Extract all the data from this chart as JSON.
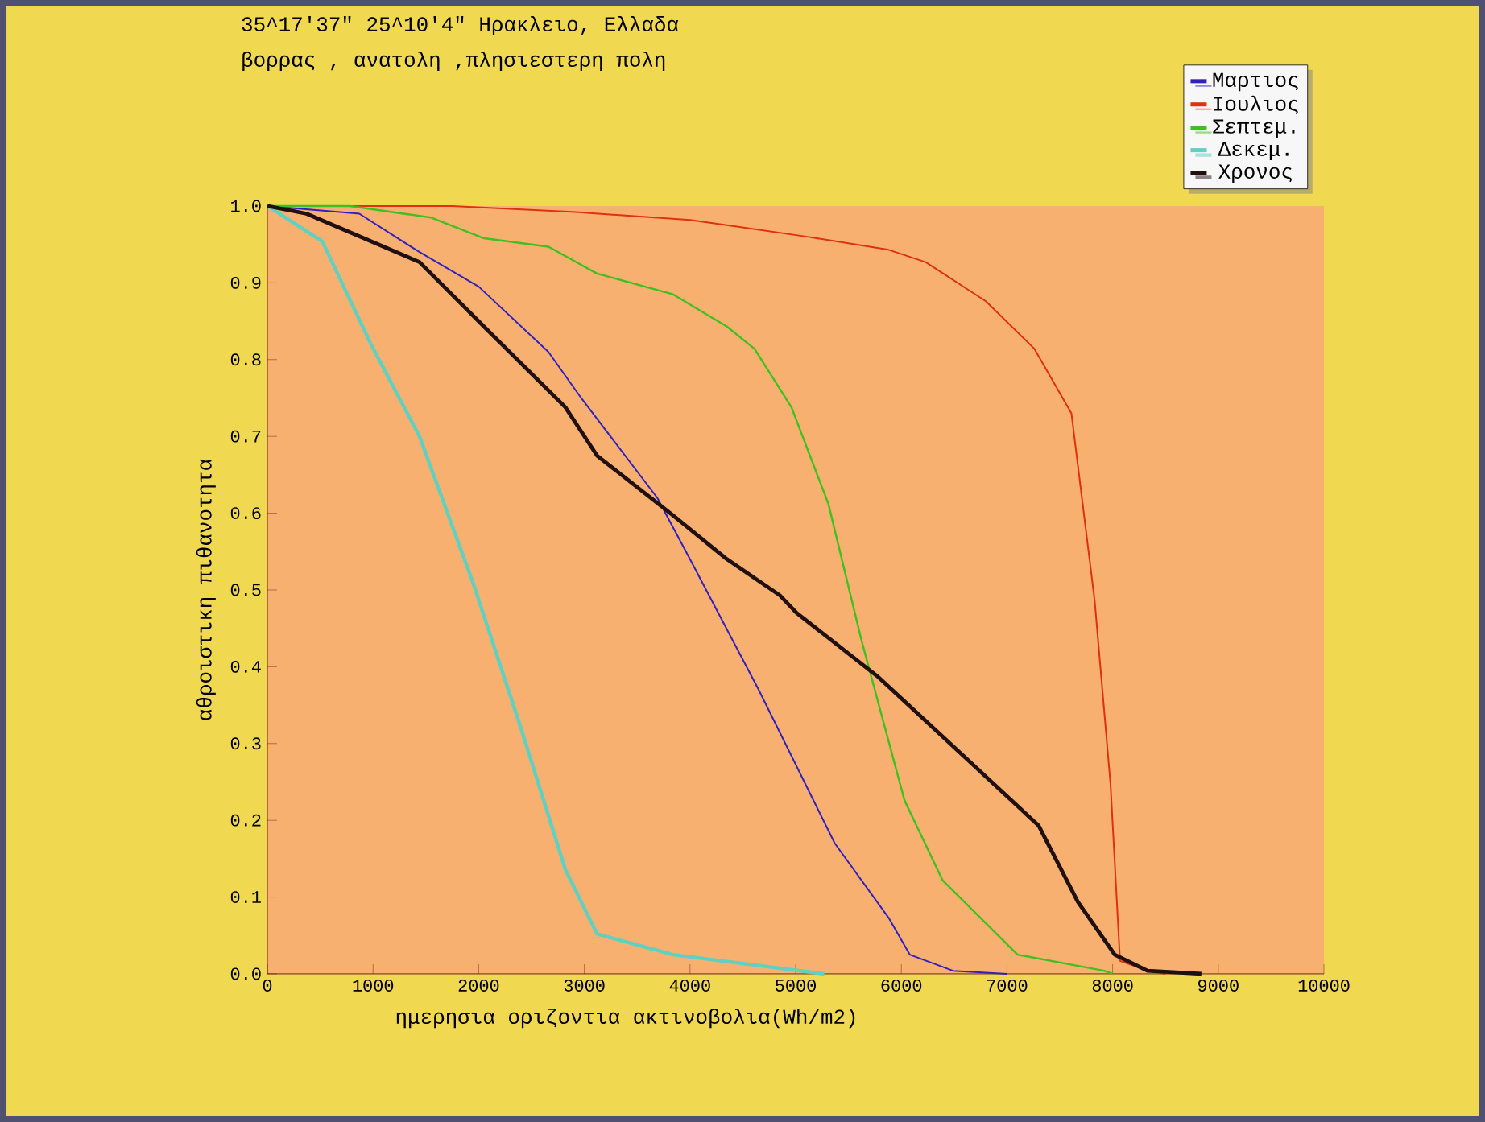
{
  "chart_data": {
    "type": "line",
    "title": "35^17'37\"      25^10'4\"  Ηρακλειο, Ελλαδα",
    "subtitle": "βορρας ,  ανατολη ,πλησιεστερη πολη",
    "xlabel": "ημερησια οριζοντια ακτινοβολια(Wh/m2)",
    "ylabel": "αθροιστικη πιθανοτητα",
    "xlim": [
      0,
      10000
    ],
    "ylim": [
      0,
      1
    ],
    "xticks": [
      0,
      1000,
      2000,
      3000,
      4000,
      5000,
      6000,
      7000,
      8000,
      9000,
      10000
    ],
    "yticks": [
      {
        "value": 0,
        "label": "0.0"
      },
      {
        "value": 0.1,
        "label": "0.1"
      },
      {
        "value": 0.2,
        "label": "0.2"
      },
      {
        "value": 0.3,
        "label": "0.3"
      },
      {
        "value": 0.4,
        "label": "0.4"
      },
      {
        "value": 0.5,
        "label": "0.5"
      },
      {
        "value": 0.6,
        "label": "0.6"
      },
      {
        "value": 0.7,
        "label": "0.7"
      },
      {
        "value": 0.8,
        "label": "0.8"
      },
      {
        "value": 0.9,
        "label": "0.9"
      },
      {
        "value": 1,
        "label": "1.0"
      }
    ],
    "legend": "top right",
    "series": [
      {
        "name": "Μαρτιος",
        "color": "#3020c0",
        "x": [
          0,
          870,
          1440,
          2000,
          2660,
          2970,
          3690,
          4000,
          4650,
          5370,
          5880,
          6080,
          6490,
          7000
        ],
        "values": [
          1.0,
          0.99,
          0.94,
          0.895,
          0.81,
          0.75,
          0.62,
          0.54,
          0.37,
          0.17,
          0.073,
          0.025,
          0.004,
          0.0
        ]
      },
      {
        "name": "Ιουλιος",
        "color": "#e03010",
        "x": [
          0,
          1750,
          2920,
          4000,
          4350,
          5110,
          5880,
          6230,
          6800,
          7260,
          7610,
          7830,
          7980,
          8070,
          8330,
          8500
        ],
        "values": [
          1.0,
          1.0,
          0.992,
          0.982,
          0.975,
          0.96,
          0.943,
          0.927,
          0.876,
          0.814,
          0.73,
          0.486,
          0.247,
          0.017,
          0.004,
          0.0
        ]
      },
      {
        "name": "Σεπτεμ.",
        "color": "#40c020",
        "x": [
          0,
          780,
          1550,
          2050,
          2660,
          3120,
          3840,
          4350,
          4610,
          4960,
          5310,
          5620,
          6030,
          6390,
          7100,
          7920,
          8000
        ],
        "values": [
          1.0,
          1.0,
          0.985,
          0.958,
          0.947,
          0.912,
          0.885,
          0.843,
          0.814,
          0.738,
          0.612,
          0.436,
          0.226,
          0.122,
          0.025,
          0.004,
          0.0
        ]
      },
      {
        "name": "Δεκεμ.",
        "color": "#60d0c0",
        "x": [
          0,
          520,
          980,
          1440,
          1945,
          2400,
          2820,
          3120,
          3840,
          5270
        ],
        "values": [
          1.0,
          0.954,
          0.82,
          0.7,
          0.51,
          0.32,
          0.136,
          0.052,
          0.025,
          0.0
        ]
      },
      {
        "name": "Χρονος",
        "color": "#201010",
        "x": [
          0,
          370,
          1440,
          2050,
          2820,
          3120,
          3840,
          4350,
          4850,
          5010,
          5770,
          6540,
          7300,
          7670,
          8020,
          8330,
          8840
        ],
        "values": [
          1.0,
          0.99,
          0.927,
          0.843,
          0.738,
          0.675,
          0.597,
          0.54,
          0.493,
          0.47,
          0.388,
          0.29,
          0.193,
          0.094,
          0.025,
          0.004,
          0.0
        ]
      }
    ]
  }
}
